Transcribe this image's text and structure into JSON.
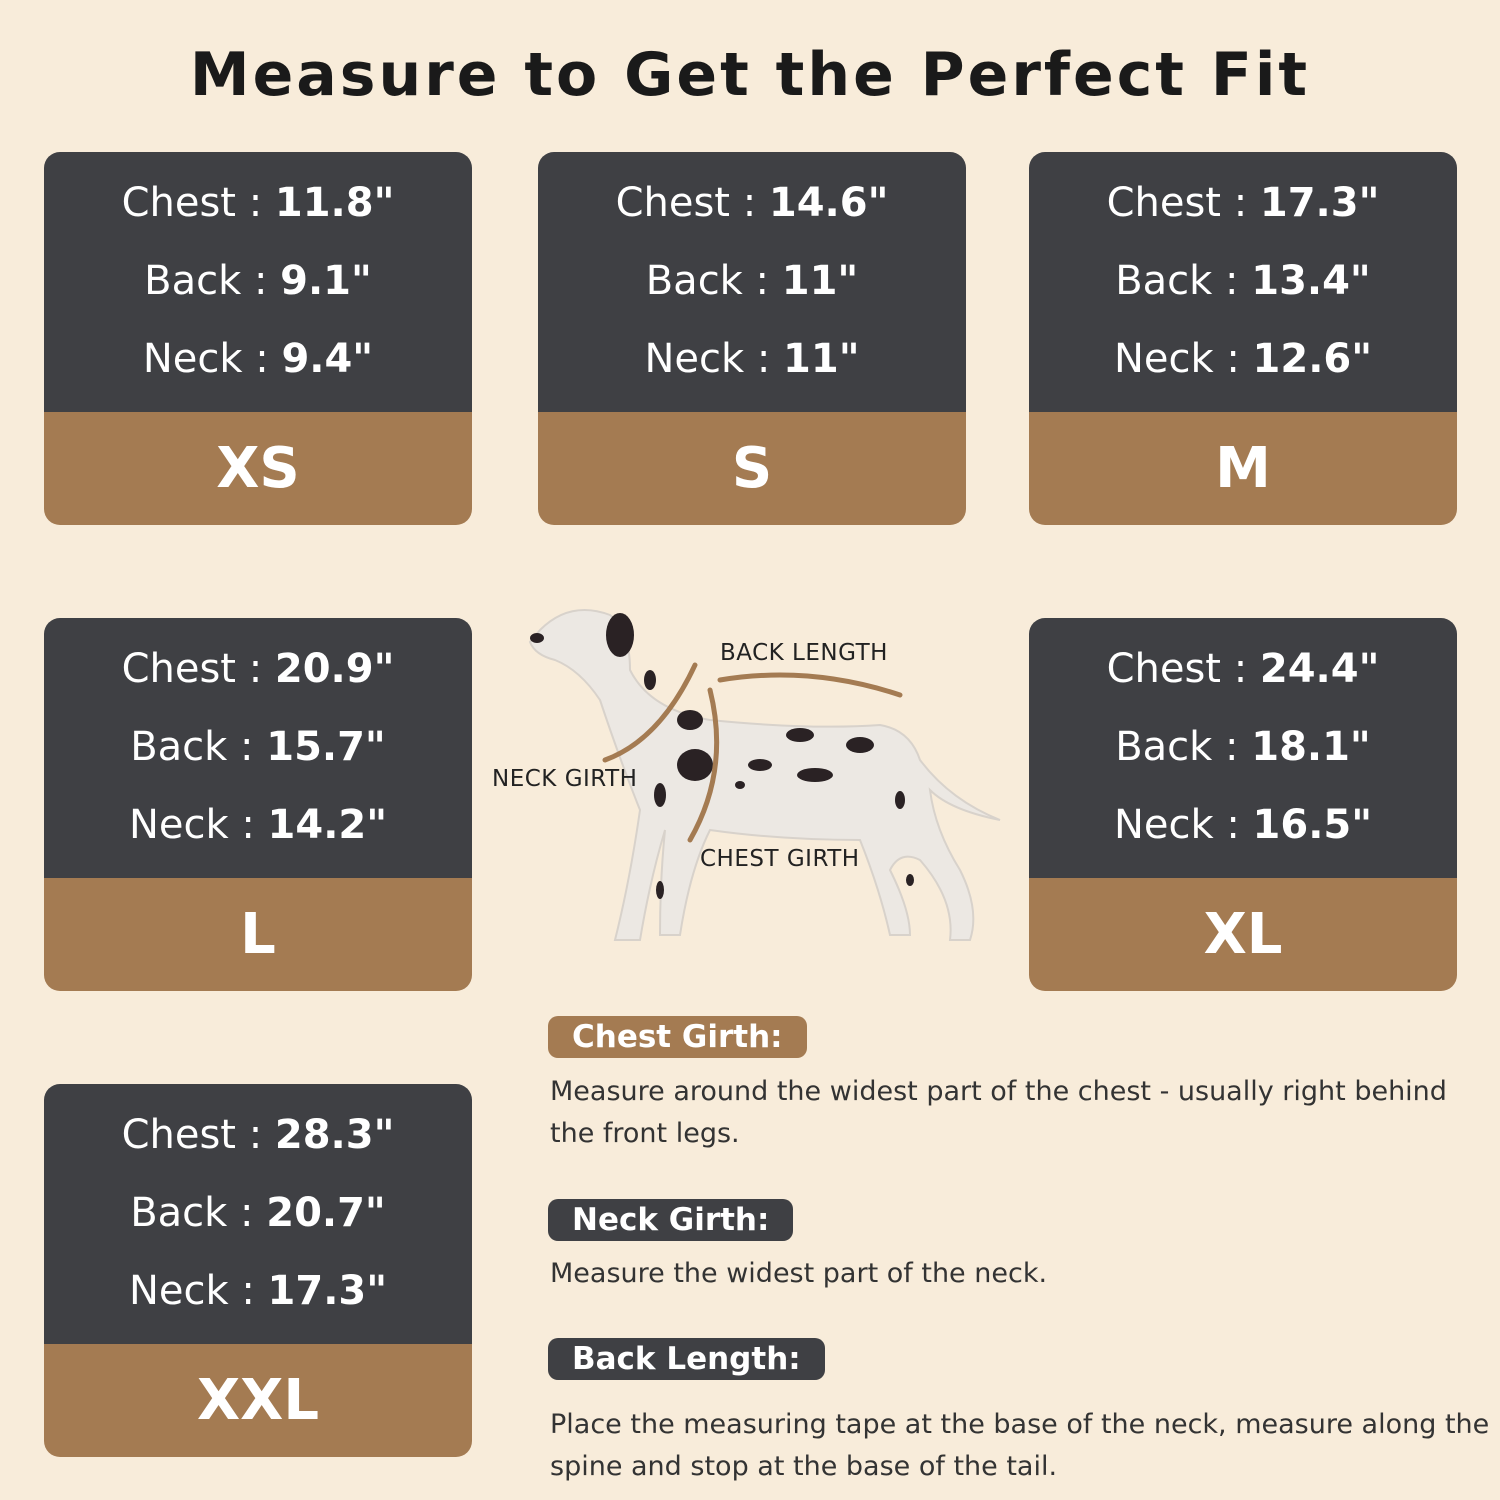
{
  "title": "Measure to Get the Perfect Fit",
  "sizes": [
    {
      "size": "XS",
      "chest": "11.8\"",
      "back": "9.1\"",
      "neck": "9.4\""
    },
    {
      "size": "S",
      "chest": "14.6\"",
      "back": "11\"",
      "neck": "11\""
    },
    {
      "size": "M",
      "chest": "17.3\"",
      "back": "13.4\"",
      "neck": "12.6\""
    },
    {
      "size": "L",
      "chest": "20.9\"",
      "back": "15.7\"",
      "neck": "14.2\""
    },
    {
      "size": "XL",
      "chest": "24.4\"",
      "back": "18.1\"",
      "neck": "16.5\""
    },
    {
      "size": "XXL",
      "chest": "28.3\"",
      "back": "20.7\"",
      "neck": "17.3\""
    }
  ],
  "labels": {
    "chest": "Chest : ",
    "back": "Back : ",
    "neck": "Neck : "
  },
  "diagram": {
    "back_length": "BACK LENGTH",
    "neck_girth": "NECK GIRTH",
    "chest_girth": "CHEST GIRTH"
  },
  "instructions": [
    {
      "heading": "Chest Girth:",
      "text": "Measure around the widest part of the chest - usually right behind the front legs.",
      "color": "#a47b52"
    },
    {
      "heading": "Neck Girth:",
      "text": "Measure the widest part of the neck.",
      "color": "#3f4044"
    },
    {
      "heading": "Back Length:",
      "text": "Place the measuring tape at the base of the neck, measure along the spine and stop at the base of the tail.",
      "color": "#3f4044"
    }
  ],
  "colors": {
    "background": "#f8ecda",
    "card_dark": "#3f4044",
    "card_brown": "#a47b52"
  }
}
